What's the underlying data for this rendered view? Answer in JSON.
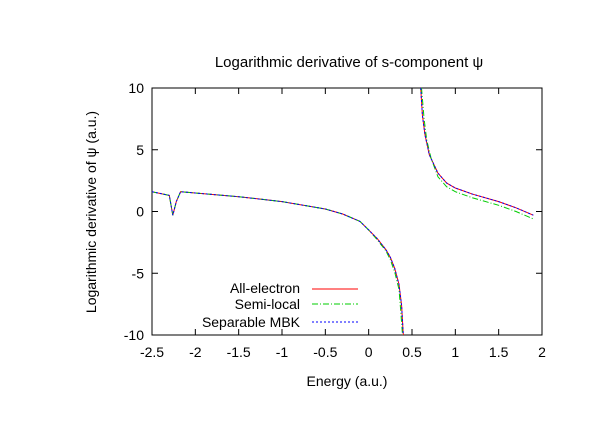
{
  "chart_data": {
    "type": "line",
    "title": "Logarithmic derivative of s-component ψ",
    "xlabel": "Energy (a.u.)",
    "ylabel": "Logarithmic derivative of ψ (a.u.)",
    "xlim": [
      -2.5,
      2
    ],
    "ylim": [
      -10,
      10
    ],
    "x_ticks": [
      "-2.5",
      "-2",
      "-1.5",
      "-1",
      "-0.5",
      "0",
      "0.5",
      "1",
      "1.5",
      "2"
    ],
    "y_ticks": [
      "10",
      "5",
      "0",
      "-5",
      "-10"
    ],
    "grid": false,
    "legend_position": "bottom-left",
    "colors": {
      "all_electron": "#ff0000",
      "semi_local": "#00cc00",
      "separable_mbk": "#0000ff"
    },
    "series": [
      {
        "name": "All-electron",
        "style": "solid",
        "x": [
          -2.5,
          -2.3,
          -2.26,
          -2.22,
          -2.17,
          -2.0,
          -1.5,
          -1.0,
          -0.5,
          -0.3,
          -0.1,
          0.0,
          0.1,
          0.2,
          0.25,
          0.3,
          0.35,
          0.38,
          0.4,
          null,
          0.6,
          0.62,
          0.65,
          0.7,
          0.8,
          0.9,
          1.0,
          1.2,
          1.5,
          1.7,
          1.9
        ],
        "y": [
          1.6,
          1.3,
          -0.3,
          0.8,
          1.6,
          1.5,
          1.2,
          0.8,
          0.2,
          -0.2,
          -0.8,
          -1.5,
          -2.2,
          -3.1,
          -3.7,
          -4.6,
          -5.9,
          -7.6,
          -10,
          null,
          10,
          7.8,
          6.2,
          4.6,
          3.1,
          2.3,
          1.9,
          1.4,
          0.8,
          0.3,
          -0.3
        ]
      },
      {
        "name": "Semi-local",
        "style": "dash-dot",
        "x": [
          -2.5,
          -2.3,
          -2.26,
          -2.22,
          -2.17,
          -2.0,
          -1.5,
          -1.0,
          -0.5,
          -0.3,
          -0.1,
          0.0,
          0.1,
          0.2,
          0.25,
          0.3,
          0.35,
          0.37,
          0.39,
          null,
          0.61,
          0.64,
          0.67,
          0.72,
          0.8,
          0.9,
          1.0,
          1.2,
          1.5,
          1.7,
          1.9
        ],
        "y": [
          1.6,
          1.3,
          -0.3,
          0.8,
          1.6,
          1.5,
          1.2,
          0.8,
          0.2,
          -0.2,
          -0.8,
          -1.5,
          -2.3,
          -3.2,
          -3.9,
          -4.9,
          -6.3,
          -8.0,
          -10,
          null,
          10,
          7.5,
          5.8,
          4.3,
          2.8,
          2.0,
          1.6,
          1.1,
          0.5,
          0.0,
          -0.6
        ]
      },
      {
        "name": "Separable MBK",
        "style": "dotted",
        "x": [
          -2.5,
          -2.3,
          -2.26,
          -2.22,
          -2.17,
          -2.0,
          -1.5,
          -1.0,
          -0.5,
          -0.3,
          -0.1,
          0.0,
          0.1,
          0.2,
          0.25,
          0.3,
          0.35,
          0.38,
          0.4,
          null,
          0.6,
          0.62,
          0.65,
          0.7,
          0.8,
          0.9,
          1.0,
          1.2,
          1.5,
          1.7,
          1.9
        ],
        "y": [
          1.6,
          1.3,
          -0.3,
          0.8,
          1.6,
          1.5,
          1.2,
          0.8,
          0.2,
          -0.2,
          -0.8,
          -1.5,
          -2.2,
          -3.1,
          -3.7,
          -4.6,
          -5.9,
          -7.6,
          -10,
          null,
          10,
          7.8,
          6.2,
          4.6,
          3.1,
          2.3,
          1.9,
          1.4,
          0.8,
          0.3,
          -0.3
        ]
      }
    ]
  }
}
